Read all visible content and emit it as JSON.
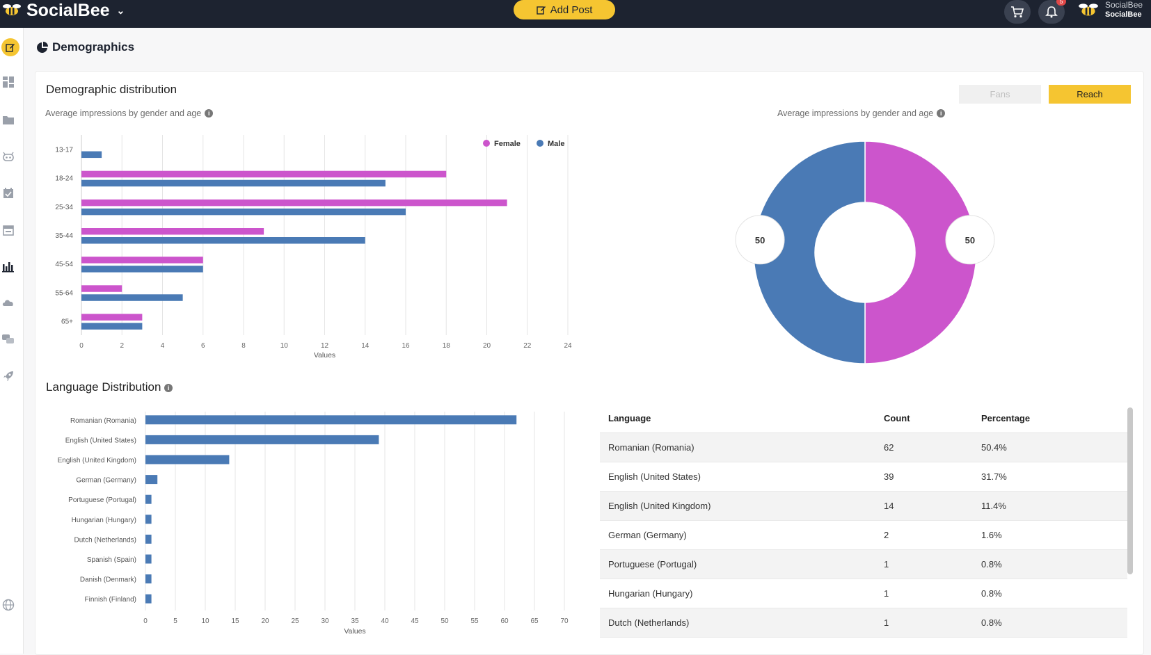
{
  "header": {
    "brand": "SocialBee",
    "add_post_label": "Add Post",
    "notification_count": "5",
    "user_line1": "SocialBee",
    "user_line2": "SocialBee"
  },
  "sidebar": {
    "items": [
      "edit-icon",
      "dashboard-icon",
      "folder-icon",
      "bot-icon",
      "calendar-check-icon",
      "calendar-icon",
      "analytics-icon",
      "cloud-icon",
      "chat-icon",
      "rocket-icon",
      "globe-icon"
    ]
  },
  "page": {
    "title": "Demographics"
  },
  "demographic": {
    "title": "Demographic distribution",
    "bar_subtitle": "Average impressions by gender and age",
    "donut_subtitle": "Average impressions by gender and age",
    "toggle_fans": "Fans",
    "toggle_reach": "Reach"
  },
  "language": {
    "title": "Language Distribution",
    "table": {
      "headers": [
        "Language",
        "Count",
        "Percentage"
      ],
      "rows": [
        [
          "Romanian (Romania)",
          "62",
          "50.4%"
        ],
        [
          "English (United States)",
          "39",
          "31.7%"
        ],
        [
          "English (United Kingdom)",
          "14",
          "11.4%"
        ],
        [
          "German (Germany)",
          "2",
          "1.6%"
        ],
        [
          "Portuguese (Portugal)",
          "1",
          "0.8%"
        ],
        [
          "Hungarian (Hungary)",
          "1",
          "0.8%"
        ],
        [
          "Dutch (Netherlands)",
          "1",
          "0.8%"
        ]
      ]
    }
  },
  "colors": {
    "female": "#cc55cc",
    "male": "#4a7ab5",
    "accent": "#f5c531",
    "topbar": "#1d2330"
  },
  "chart_data": [
    {
      "type": "bar",
      "orientation": "horizontal",
      "categories": [
        "13-17",
        "18-24",
        "25-34",
        "35-44",
        "45-54",
        "55-64",
        "65+"
      ],
      "series": [
        {
          "name": "Female",
          "values": [
            0,
            18,
            21,
            9,
            6,
            2,
            3
          ]
        },
        {
          "name": "Male",
          "values": [
            1,
            15,
            16,
            14,
            6,
            5,
            3
          ]
        }
      ],
      "xlabel": "Values",
      "xlim": [
        0,
        24
      ],
      "xticks": [
        0,
        2,
        4,
        6,
        8,
        10,
        12,
        14,
        16,
        18,
        20,
        22,
        24
      ],
      "legend": "top-right",
      "grid": true
    },
    {
      "type": "pie",
      "donut": true,
      "slices": [
        {
          "name": "Female",
          "value": 50
        },
        {
          "name": "Male",
          "value": 50
        }
      ],
      "labels": [
        "50",
        "50"
      ]
    },
    {
      "type": "bar",
      "orientation": "horizontal",
      "categories": [
        "Romanian (Romania)",
        "English (United States)",
        "English (United Kingdom)",
        "German (Germany)",
        "Portuguese (Portugal)",
        "Hungarian (Hungary)",
        "Dutch (Netherlands)",
        "Spanish (Spain)",
        "Danish (Denmark)",
        "Finnish (Finland)"
      ],
      "values": [
        62,
        39,
        14,
        2,
        1,
        1,
        1,
        1,
        1,
        1
      ],
      "xlabel": "Values",
      "xlim": [
        0,
        70
      ],
      "xticks": [
        0,
        5,
        10,
        15,
        20,
        25,
        30,
        35,
        40,
        45,
        50,
        55,
        60,
        65,
        70
      ],
      "grid": true
    }
  ]
}
